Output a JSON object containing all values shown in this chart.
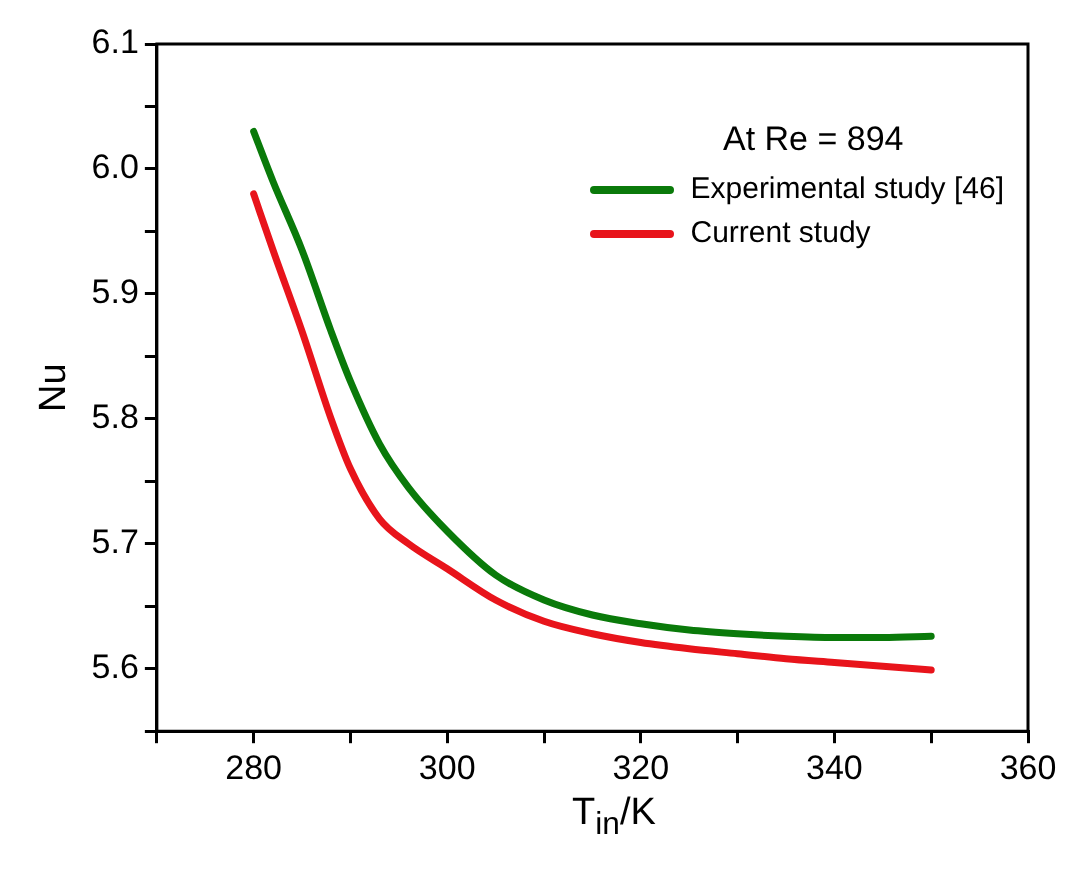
{
  "chart_data": {
    "type": "line",
    "xlabel": "T$_{in}$/K",
    "ylabel": "Nu",
    "legend_title": "At Re = 894",
    "x": [
      280,
      282,
      285,
      288,
      290,
      293,
      296,
      300,
      305,
      310,
      315,
      320,
      325,
      330,
      335,
      340,
      345,
      350
    ],
    "series": [
      {
        "name": "Experimental study [46]",
        "color": "#0a7a0a",
        "values": [
          6.03,
          5.99,
          5.935,
          5.87,
          5.83,
          5.78,
          5.745,
          5.71,
          5.675,
          5.655,
          5.643,
          5.636,
          5.631,
          5.628,
          5.626,
          5.625,
          5.625,
          5.626
        ]
      },
      {
        "name": "Current study",
        "color": "#e8141b",
        "values": [
          5.98,
          5.935,
          5.87,
          5.8,
          5.76,
          5.72,
          5.7,
          5.68,
          5.655,
          5.638,
          5.628,
          5.621,
          5.616,
          5.612,
          5.608,
          5.605,
          5.602,
          5.599
        ]
      }
    ],
    "xlim": [
      270,
      360
    ],
    "xticks": [
      {
        "value": 270,
        "label": null
      },
      280,
      {
        "value": 290,
        "label": null
      },
      300,
      {
        "value": 310,
        "label": null
      },
      320,
      {
        "value": 330,
        "label": null
      },
      340,
      {
        "value": 350,
        "label": null
      },
      360
    ],
    "ylim": [
      5.55,
      6.1
    ],
    "yticks": [
      {
        "value": 5.55,
        "label": null
      },
      {
        "value": 5.6,
        "label": "5.6"
      },
      {
        "value": 5.65,
        "label": null
      },
      {
        "value": 5.7,
        "label": "5.7"
      },
      {
        "value": 5.75,
        "label": null
      },
      {
        "value": 5.8,
        "label": "5.8"
      },
      {
        "value": 5.85,
        "label": null
      },
      {
        "value": 5.9,
        "label": "5.9"
      },
      {
        "value": 5.95,
        "label": null
      },
      {
        "value": 6.0,
        "label": "6.0"
      },
      {
        "value": 6.05,
        "label": null
      },
      {
        "value": 6.1,
        "label": "6.1"
      }
    ],
    "grid": false,
    "legend": "top right",
    "marker": "none",
    "line_style": "solid"
  }
}
